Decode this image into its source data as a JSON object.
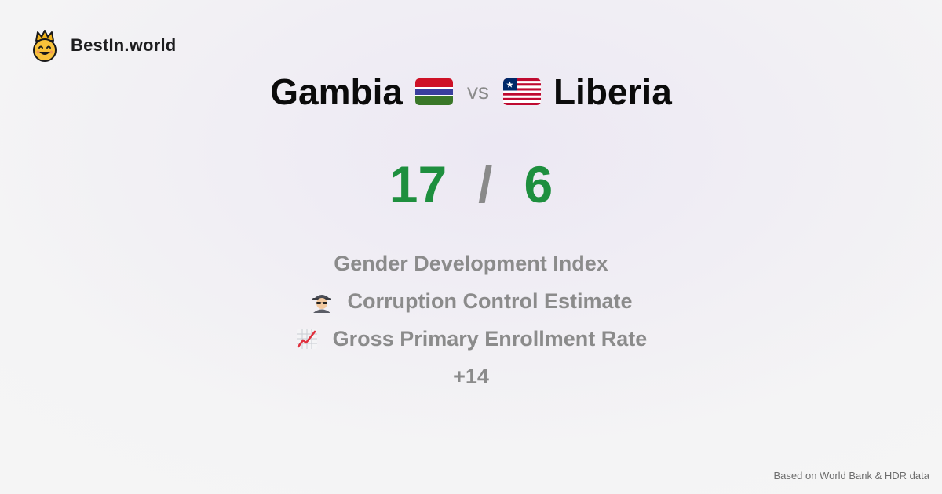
{
  "brand": {
    "name": "BestIn.world",
    "logo_icon": "crown-smiley-icon"
  },
  "comparison": {
    "country_a": {
      "name": "Gambia",
      "flag_icon": "gambia-flag-icon",
      "score": "17"
    },
    "country_b": {
      "name": "Liberia",
      "flag_icon": "liberia-flag-icon",
      "score": "6"
    },
    "vs_label": "vs",
    "separator": "/"
  },
  "metrics": [
    {
      "label": "Gender Development Index",
      "icon": ""
    },
    {
      "label": "Corruption Control Estimate",
      "icon": "detective-icon"
    },
    {
      "label": "Gross Primary Enrollment Rate",
      "icon": "chart-increasing-icon"
    }
  ],
  "more_label": "+14",
  "footer": {
    "source": "Based on World Bank & HDR data"
  },
  "colors": {
    "score": "#1e8f3e",
    "muted": "#8b8b8b",
    "text": "#0b0b0b"
  }
}
